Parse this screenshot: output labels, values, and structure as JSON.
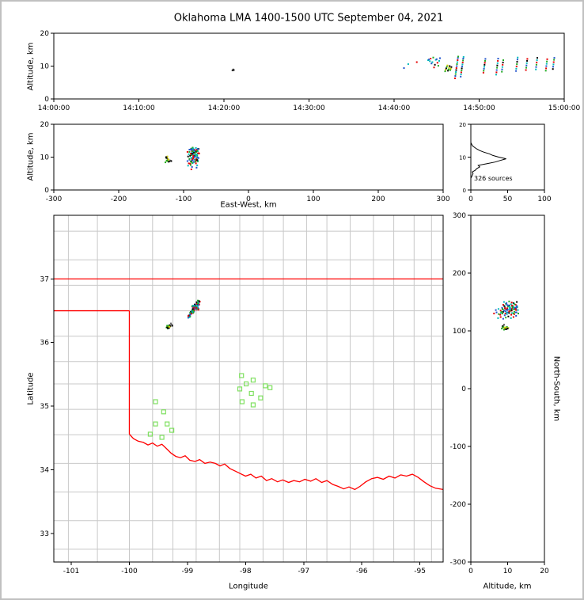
{
  "chart_data": {
    "type": "scatter",
    "title": "Oklahoma LMA 1400-1500 UTC September 04, 2021",
    "panels": [
      {
        "id": "time_height",
        "type": "scatter",
        "x": "time_utc",
        "y": "altitude_km"
      },
      {
        "id": "east_west_height",
        "type": "scatter",
        "x": "east_west_km",
        "y": "altitude_km"
      },
      {
        "id": "altitude_histogram",
        "type": "line",
        "x": "source_count",
        "y": "altitude_km"
      },
      {
        "id": "plan_view",
        "type": "scatter",
        "x": "longitude",
        "y": "latitude"
      },
      {
        "id": "north_south_height",
        "type": "scatter",
        "x": "altitude_km",
        "y": "north_south_km"
      }
    ],
    "limits": {
      "time_s": [
        0,
        3600
      ],
      "altitude_km": [
        0,
        20
      ],
      "east_west_km": [
        -300,
        300
      ],
      "north_south_km": [
        -300,
        300
      ],
      "histogram_count": [
        0,
        100
      ],
      "lon": [
        -101.3,
        -94.6
      ],
      "lat": [
        32.55,
        38.0
      ]
    },
    "axes": {
      "time": {
        "ylabel": "Altitude, km",
        "xtick_values": [
          0,
          600,
          1200,
          1800,
          2400,
          3000,
          3600
        ],
        "xtick_labels": [
          "14:00:00",
          "14:10:00",
          "14:20:00",
          "14:30:00",
          "14:40:00",
          "14:50:00",
          "15:00:00"
        ],
        "ytick_values": [
          0,
          10,
          20
        ],
        "ytick_labels": [
          "0",
          "10",
          "20"
        ]
      },
      "east_west": {
        "xlabel": "East-West, km",
        "ylabel": "Altitude, km",
        "xtick_values": [
          -300,
          -200,
          -100,
          0,
          100,
          200,
          300
        ],
        "xtick_labels": [
          "-300",
          "-200",
          "-100",
          "0",
          "100",
          "200",
          "300"
        ],
        "ytick_values": [
          0,
          10,
          20
        ],
        "ytick_labels": [
          "0",
          "10",
          "20"
        ]
      },
      "histogram": {
        "xtick_values": [
          0,
          50,
          100
        ],
        "xtick_labels": [
          "0",
          "50",
          "100"
        ],
        "ytick_values": [
          0,
          10,
          20
        ],
        "ytick_labels": [
          "0",
          "10",
          "20"
        ]
      },
      "map": {
        "xlabel": "Longitude",
        "ylabel": "Latitude",
        "xtick_values": [
          -101,
          -100,
          -99,
          -98,
          -97,
          -96,
          -95
        ],
        "xtick_labels": [
          "-101",
          "-100",
          "-99",
          "-98",
          "-97",
          "-96",
          "-95"
        ],
        "ytick_values": [
          33,
          34,
          35,
          36,
          37
        ],
        "ytick_labels": [
          "33",
          "34",
          "35",
          "36",
          "37"
        ]
      },
      "north_south": {
        "xlabel": "Altitude, km",
        "ylabel": "North-South, km",
        "xtick_values": [
          0,
          10,
          20
        ],
        "xtick_labels": [
          "0",
          "10",
          "20"
        ],
        "ytick_values": [
          300,
          200,
          100,
          0,
          -100,
          -200,
          -300
        ],
        "ytick_labels": [
          "300",
          "200",
          "100",
          "0",
          "-100",
          "-200",
          "-300"
        ]
      }
    },
    "histogram": {
      "label": "326 sources",
      "alt_km": [
        4,
        4.5,
        5,
        5.5,
        6,
        6.5,
        7,
        7.5,
        8,
        8.5,
        9,
        9.5,
        10,
        10.5,
        11,
        11.5,
        12,
        12.5,
        13,
        13.5,
        14
      ],
      "counts": [
        1,
        2,
        3,
        2,
        6,
        8,
        12,
        10,
        22,
        33,
        40,
        48,
        38,
        30,
        25,
        18,
        12,
        8,
        5,
        2,
        1
      ]
    },
    "palette": [
      "#000000",
      "#e60000",
      "#2255cc",
      "#22aa22",
      "#00bbbb",
      "#9944bb",
      "#cccc00",
      "#666666"
    ],
    "sources_format": [
      "time_s_after_1400",
      "east_west_km",
      "north_south_km",
      "altitude_km",
      "color_index"
    ],
    "sources": [
      [
        1260,
        -122,
        106,
        8.7,
        0
      ],
      [
        1263,
        -120,
        109,
        8.9,
        7
      ],
      [
        1266,
        -121,
        111,
        9.0,
        7
      ],
      [
        1269,
        -119,
        107,
        8.8,
        0
      ],
      [
        2470,
        -86,
        134,
        9.4,
        2
      ],
      [
        2500,
        -84,
        137,
        10.6,
        4
      ],
      [
        2560,
        -87,
        139,
        11.2,
        1
      ],
      [
        2640,
        -85,
        138,
        11.8,
        4
      ],
      [
        2646,
        -83,
        140,
        12.0,
        2
      ],
      [
        2652,
        -87,
        142,
        11.5,
        4
      ],
      [
        2658,
        -84,
        136,
        12.3,
        1
      ],
      [
        2664,
        -86,
        139,
        10.8,
        2
      ],
      [
        2670,
        -82,
        143,
        11.2,
        4
      ],
      [
        2676,
        -88,
        141,
        12.6,
        3
      ],
      [
        2682,
        -85,
        137,
        9.6,
        1
      ],
      [
        2688,
        -84,
        144,
        10.4,
        0
      ],
      [
        2694,
        -86,
        140,
        11.9,
        4
      ],
      [
        2700,
        -83,
        138,
        12.1,
        2
      ],
      [
        2706,
        -87,
        135,
        11.0,
        1
      ],
      [
        2712,
        -85,
        142,
        10.1,
        3
      ],
      [
        2718,
        -84,
        139,
        11.6,
        4
      ],
      [
        2724,
        -86,
        141,
        12.4,
        2
      ],
      [
        2760,
        -128,
        104,
        8.4,
        3
      ],
      [
        2764,
        -126,
        106,
        8.9,
        6
      ],
      [
        2768,
        -124,
        103,
        9.3,
        0
      ],
      [
        2772,
        -127,
        107,
        9.8,
        3
      ],
      [
        2776,
        -125,
        105,
        10.2,
        6
      ],
      [
        2780,
        -123,
        108,
        8.6,
        0
      ],
      [
        2784,
        -126,
        102,
        9.0,
        3
      ],
      [
        2788,
        -124,
        106,
        9.5,
        6
      ],
      [
        2792,
        -127,
        104,
        10.0,
        0
      ],
      [
        2796,
        -125,
        107,
        8.8,
        3
      ],
      [
        2800,
        -123,
        105,
        9.2,
        6
      ],
      [
        2804,
        -126,
        103,
        9.7,
        0
      ],
      [
        2830,
        -88,
        130,
        6.3,
        1
      ],
      [
        2832,
        -87,
        132,
        7.0,
        2
      ],
      [
        2834,
        -89,
        129,
        7.6,
        3
      ],
      [
        2836,
        -86,
        131,
        8.2,
        4
      ],
      [
        2838,
        -88,
        133,
        8.8,
        0
      ],
      [
        2840,
        -87,
        130,
        9.4,
        1
      ],
      [
        2842,
        -85,
        132,
        10.0,
        2
      ],
      [
        2844,
        -88,
        134,
        10.6,
        3
      ],
      [
        2846,
        -86,
        131,
        11.2,
        4
      ],
      [
        2848,
        -87,
        129,
        11.8,
        1
      ],
      [
        2850,
        -89,
        132,
        12.4,
        2
      ],
      [
        2852,
        -86,
        130,
        12.9,
        3
      ],
      [
        2870,
        -80,
        136,
        6.8,
        2
      ],
      [
        2872,
        -79,
        138,
        7.5,
        4
      ],
      [
        2874,
        -81,
        135,
        8.1,
        1
      ],
      [
        2876,
        -78,
        137,
        8.7,
        3
      ],
      [
        2878,
        -80,
        139,
        9.3,
        0
      ],
      [
        2880,
        -79,
        136,
        9.9,
        2
      ],
      [
        2882,
        -81,
        138,
        10.5,
        4
      ],
      [
        2884,
        -78,
        135,
        11.1,
        1
      ],
      [
        2886,
        -80,
        137,
        11.7,
        3
      ],
      [
        2888,
        -79,
        139,
        12.3,
        2
      ],
      [
        2890,
        -81,
        136,
        12.8,
        4
      ],
      [
        3030,
        -90,
        128,
        8.0,
        1
      ],
      [
        3032,
        -89,
        130,
        8.6,
        3
      ],
      [
        3034,
        -91,
        127,
        9.2,
        2
      ],
      [
        3036,
        -88,
        129,
        9.8,
        4
      ],
      [
        3038,
        -90,
        131,
        10.4,
        0
      ],
      [
        3040,
        -89,
        128,
        11.0,
        1
      ],
      [
        3042,
        -91,
        130,
        11.6,
        3
      ],
      [
        3044,
        -88,
        132,
        12.2,
        2
      ],
      [
        3120,
        -93,
        122,
        7.4,
        4
      ],
      [
        3122,
        -92,
        124,
        8.1,
        1
      ],
      [
        3124,
        -94,
        121,
        8.8,
        2
      ],
      [
        3126,
        -91,
        123,
        9.5,
        3
      ],
      [
        3128,
        -93,
        125,
        10.2,
        0
      ],
      [
        3130,
        -92,
        122,
        10.9,
        4
      ],
      [
        3132,
        -94,
        124,
        11.6,
        1
      ],
      [
        3134,
        -91,
        126,
        12.3,
        2
      ],
      [
        3160,
        -87,
        133,
        8.3,
        3
      ],
      [
        3162,
        -86,
        135,
        9.0,
        2
      ],
      [
        3164,
        -88,
        132,
        9.7,
        4
      ],
      [
        3166,
        -85,
        134,
        10.4,
        1
      ],
      [
        3168,
        -87,
        136,
        11.1,
        0
      ],
      [
        3170,
        -86,
        133,
        11.8,
        3
      ],
      [
        3260,
        -84,
        140,
        8.5,
        2
      ],
      [
        3262,
        -83,
        142,
        9.2,
        4
      ],
      [
        3264,
        -85,
        139,
        9.9,
        1
      ],
      [
        3266,
        -82,
        141,
        10.6,
        3
      ],
      [
        3268,
        -84,
        143,
        11.3,
        0
      ],
      [
        3270,
        -83,
        140,
        12.0,
        2
      ],
      [
        3272,
        -85,
        142,
        12.6,
        4
      ],
      [
        3330,
        -81,
        145,
        8.8,
        1
      ],
      [
        3332,
        -80,
        147,
        9.5,
        3
      ],
      [
        3334,
        -82,
        144,
        10.2,
        2
      ],
      [
        3336,
        -79,
        146,
        10.9,
        4
      ],
      [
        3338,
        -81,
        148,
        11.6,
        0
      ],
      [
        3340,
        -80,
        145,
        12.2,
        1
      ],
      [
        3400,
        -78,
        150,
        9.0,
        4
      ],
      [
        3402,
        -77,
        148,
        9.7,
        2
      ],
      [
        3404,
        -79,
        151,
        10.4,
        3
      ],
      [
        3406,
        -76,
        149,
        11.1,
        1
      ],
      [
        3408,
        -78,
        147,
        11.8,
        4
      ],
      [
        3410,
        -77,
        150,
        12.5,
        0
      ],
      [
        3470,
        -82,
        138,
        8.6,
        3
      ],
      [
        3472,
        -81,
        140,
        9.3,
        1
      ],
      [
        3474,
        -83,
        137,
        10.0,
        2
      ],
      [
        3476,
        -80,
        139,
        10.7,
        4
      ],
      [
        3478,
        -82,
        141,
        11.4,
        3
      ],
      [
        3480,
        -81,
        138,
        12.1,
        1
      ],
      [
        3520,
        -79,
        143,
        9.1,
        0
      ],
      [
        3522,
        -78,
        145,
        9.8,
        2
      ],
      [
        3524,
        -80,
        142,
        10.5,
        4
      ],
      [
        3526,
        -77,
        144,
        11.2,
        1
      ],
      [
        3528,
        -79,
        146,
        11.9,
        3
      ],
      [
        3530,
        -78,
        143,
        12.5,
        2
      ]
    ],
    "map": {
      "projection": {
        "center_lon": -97.95,
        "center_lat": 35.3,
        "km_per_deg_lon": 90.7,
        "km_per_deg_lat": 111
      },
      "county_color": "#c8c8c8",
      "border_color": "#ff0000",
      "station_color": "#7fe060",
      "county_lons": [
        -101.05,
        -100.55,
        -100.0,
        -99.6,
        -99.25,
        -98.85,
        -98.45,
        -98.1,
        -97.7,
        -97.35,
        -96.95,
        -96.6,
        -96.2,
        -95.8,
        -95.45,
        -95.1,
        -94.8
      ],
      "county_lats": [
        32.75,
        33.2,
        33.65,
        34.1,
        34.55,
        34.95,
        35.35,
        35.7,
        36.1,
        36.5,
        36.9,
        37.3,
        37.75
      ],
      "stations": [
        [
          -99.55,
          35.07
        ],
        [
          -99.41,
          34.91
        ],
        [
          -99.55,
          34.72
        ],
        [
          -99.35,
          34.72
        ],
        [
          -99.64,
          34.56
        ],
        [
          -99.44,
          34.51
        ],
        [
          -99.27,
          34.62
        ],
        [
          -98.07,
          35.48
        ],
        [
          -97.87,
          35.41
        ],
        [
          -97.66,
          35.32
        ],
        [
          -98.1,
          35.27
        ],
        [
          -97.9,
          35.2
        ],
        [
          -97.74,
          35.13
        ],
        [
          -98.06,
          35.07
        ],
        [
          -97.87,
          35.02
        ],
        [
          -97.58,
          35.29
        ],
        [
          -97.99,
          35.35
        ]
      ],
      "state_border": {
        "top_lat": 37.0,
        "panhandle_lat": 36.5,
        "panhandle_lon_end": -100.0,
        "west_lon": -100.0,
        "west_lat_range": [
          34.56,
          36.5
        ],
        "red_river": [
          [
            -100.0,
            34.56
          ],
          [
            -99.93,
            34.49
          ],
          [
            -99.85,
            34.45
          ],
          [
            -99.76,
            34.43
          ],
          [
            -99.68,
            34.39
          ],
          [
            -99.6,
            34.42
          ],
          [
            -99.52,
            34.37
          ],
          [
            -99.44,
            34.4
          ],
          [
            -99.36,
            34.33
          ],
          [
            -99.28,
            34.26
          ],
          [
            -99.2,
            34.21
          ],
          [
            -99.12,
            34.19
          ],
          [
            -99.04,
            34.22
          ],
          [
            -98.96,
            34.15
          ],
          [
            -98.87,
            34.13
          ],
          [
            -98.79,
            34.16
          ],
          [
            -98.7,
            34.1
          ],
          [
            -98.61,
            34.12
          ],
          [
            -98.52,
            34.1
          ],
          [
            -98.44,
            34.06
          ],
          [
            -98.36,
            34.09
          ],
          [
            -98.27,
            34.02
          ],
          [
            -98.18,
            33.98
          ],
          [
            -98.09,
            33.94
          ],
          [
            -98.0,
            33.9
          ],
          [
            -97.91,
            33.93
          ],
          [
            -97.82,
            33.87
          ],
          [
            -97.73,
            33.9
          ],
          [
            -97.64,
            33.83
          ],
          [
            -97.55,
            33.86
          ],
          [
            -97.45,
            33.81
          ],
          [
            -97.36,
            33.84
          ],
          [
            -97.26,
            33.8
          ],
          [
            -97.17,
            33.83
          ],
          [
            -97.07,
            33.81
          ],
          [
            -96.98,
            33.85
          ],
          [
            -96.88,
            33.82
          ],
          [
            -96.79,
            33.86
          ],
          [
            -96.69,
            33.8
          ],
          [
            -96.6,
            33.83
          ],
          [
            -96.5,
            33.77
          ],
          [
            -96.41,
            33.74
          ],
          [
            -96.31,
            33.7
          ],
          [
            -96.22,
            33.73
          ],
          [
            -96.12,
            33.69
          ],
          [
            -96.03,
            33.74
          ],
          [
            -95.93,
            33.81
          ],
          [
            -95.83,
            33.86
          ],
          [
            -95.73,
            33.88
          ],
          [
            -95.63,
            33.85
          ],
          [
            -95.53,
            33.9
          ],
          [
            -95.43,
            33.87
          ],
          [
            -95.33,
            33.92
          ],
          [
            -95.23,
            33.9
          ],
          [
            -95.13,
            33.93
          ],
          [
            -95.03,
            33.88
          ],
          [
            -94.93,
            33.81
          ],
          [
            -94.83,
            33.75
          ],
          [
            -94.73,
            33.71
          ],
          [
            -94.6,
            33.69
          ]
        ]
      }
    }
  }
}
